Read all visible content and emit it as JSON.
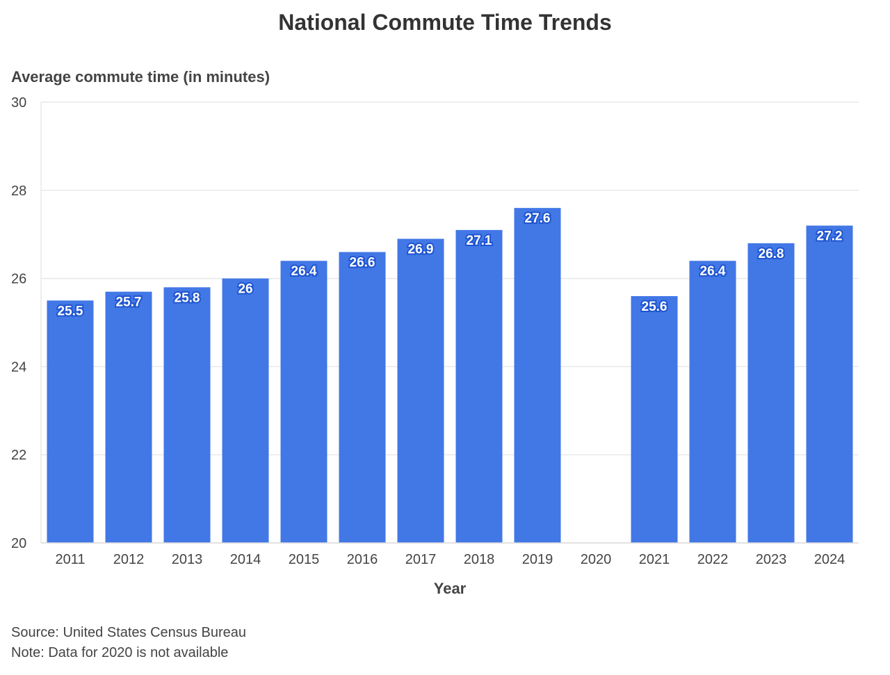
{
  "chart_data": {
    "type": "bar",
    "title": "National Commute Time Trends",
    "ylabel": "Average commute time (in minutes)",
    "xlabel": "Year",
    "categories": [
      "2011",
      "2012",
      "2013",
      "2014",
      "2015",
      "2016",
      "2017",
      "2018",
      "2019",
      "2020",
      "2021",
      "2022",
      "2023",
      "2024"
    ],
    "values": [
      25.5,
      25.7,
      25.8,
      26,
      26.4,
      26.6,
      26.9,
      27.1,
      27.6,
      null,
      25.6,
      26.4,
      26.8,
      27.2
    ],
    "data_labels": [
      "25.5",
      "25.7",
      "25.8",
      "26",
      "26.4",
      "26.6",
      "26.9",
      "27.1",
      "27.6",
      "",
      "25.6",
      "26.4",
      "26.8",
      "27.2"
    ],
    "ylim": [
      20,
      30
    ],
    "yticks": [
      "20",
      "22",
      "24",
      "26",
      "28",
      "30"
    ],
    "grid": true,
    "bar_color": "#4277e6"
  },
  "footer": {
    "source": "Source: United States Census Bureau",
    "note": "Note: Data for 2020 is not available"
  }
}
